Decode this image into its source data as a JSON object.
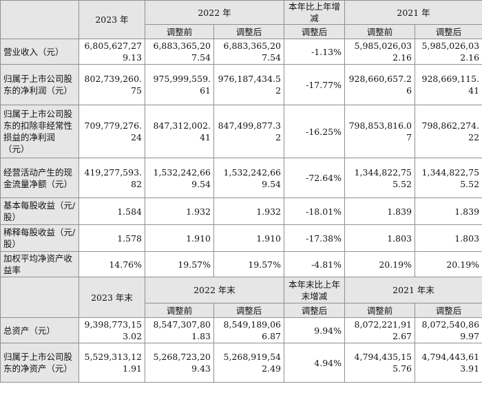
{
  "header1": {
    "col_2023": "2023 年",
    "col_2022": "2022 年",
    "col_change": "本年比上年增减",
    "col_2021": "2021 年",
    "sub_before": "调整前",
    "sub_after": "调整后",
    "sub_change": "调整后",
    "sub_before_2021": "调整前",
    "sub_after_2021": "调整后"
  },
  "rows1": [
    {
      "label": "营业收入（元）",
      "v2023": "6,805,627,279.13",
      "v2022_before": "6,883,365,207.54",
      "v2022_after": "6,883,365,207.54",
      "change": "-1.13%",
      "v2021_before": "5,985,026,032.16",
      "v2021_after": "5,985,026,032.16"
    },
    {
      "label": "归属于上市公司股东的净利润（元）",
      "v2023": "802,739,260.75",
      "v2022_before": "975,999,559.61",
      "v2022_after": "976,187,434.52",
      "change": "-17.77%",
      "v2021_before": "928,660,657.26",
      "v2021_after": "928,669,115.41"
    },
    {
      "label": "归属于上市公司股东的扣除非经常性损益的净利润（元）",
      "v2023": "709,779,276.24",
      "v2022_before": "847,312,002.41",
      "v2022_after": "847,499,877.32",
      "change": "-16.25%",
      "v2021_before": "798,853,816.07",
      "v2021_after": "798,862,274.22"
    },
    {
      "label": "经营活动产生的现金流量净额（元）",
      "v2023": "419,277,593.82",
      "v2022_before": "1,532,242,669.54",
      "v2022_after": "1,532,242,669.54",
      "change": "-72.64%",
      "v2021_before": "1,344,822,755.52",
      "v2021_after": "1,344,822,755.52"
    },
    {
      "label": "基本每股收益（元/股）",
      "v2023": "1.584",
      "v2022_before": "1.932",
      "v2022_after": "1.932",
      "change": "-18.01%",
      "v2021_before": "1.839",
      "v2021_after": "1.839"
    },
    {
      "label": "稀释每股收益（元/股）",
      "v2023": "1.578",
      "v2022_before": "1.910",
      "v2022_after": "1.910",
      "change": "-17.38%",
      "v2021_before": "1.803",
      "v2021_after": "1.803"
    },
    {
      "label": "加权平均净资产收益率",
      "v2023": "14.76%",
      "v2022_before": "19.57%",
      "v2022_after": "19.57%",
      "change": "-4.81%",
      "v2021_before": "20.19%",
      "v2021_after": "20.19%"
    }
  ],
  "header2": {
    "col_2023": "2023 年末",
    "col_2022": "2022 年末",
    "col_change": "本年末比上年末增减",
    "col_2021": "2021 年末",
    "sub_before": "调整前",
    "sub_after": "调整后",
    "sub_change": "调整后",
    "sub_before_2021": "调整前",
    "sub_after_2021": "调整后"
  },
  "rows2": [
    {
      "label": "总资产（元）",
      "v2023": "9,398,773,153.02",
      "v2022_before": "8,547,307,801.83",
      "v2022_after": "8,549,189,066.87",
      "change": "9.94%",
      "v2021_before": "8,072,221,912.67",
      "v2021_after": "8,072,540,869.97"
    },
    {
      "label": "归属于上市公司股东的净资产（元）",
      "v2023": "5,529,313,121.91",
      "v2022_before": "5,268,723,209.43",
      "v2022_after": "5,268,919,542.49",
      "change": "4.94%",
      "v2021_before": "4,794,435,155.76",
      "v2021_after": "4,794,443,613.91"
    }
  ]
}
